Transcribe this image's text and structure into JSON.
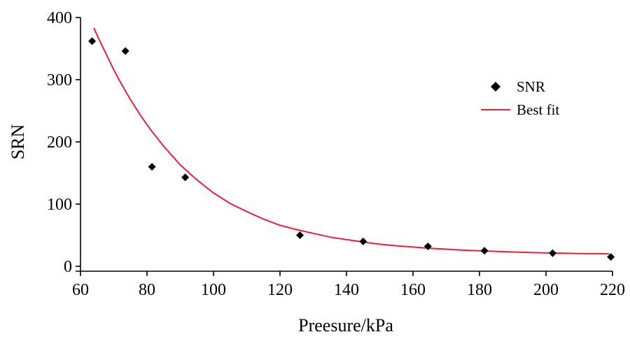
{
  "chart_data": {
    "type": "scatter",
    "title": "",
    "xlabel": "Preesure/kPa",
    "ylabel": "SRN",
    "xlim": [
      60,
      220
    ],
    "ylim": [
      0,
      400
    ],
    "xticks": [
      60,
      80,
      100,
      120,
      140,
      160,
      180,
      200,
      220
    ],
    "yticks": [
      0,
      100,
      200,
      300,
      400
    ],
    "xtick_labels": [
      "60",
      "80",
      "100",
      "120",
      "140",
      "160",
      "180",
      "200",
      "220"
    ],
    "ytick_labels": [
      "0",
      "100",
      "200",
      "300",
      "400"
    ],
    "grid": false,
    "legend_position": "top-right",
    "series": [
      {
        "name": "SNR",
        "kind": "scatter",
        "marker": "diamond",
        "color": "#000000",
        "x": [
          63.5,
          73.5,
          81.5,
          91.5,
          126,
          145,
          164.5,
          181.5,
          202,
          219.5
        ],
        "y": [
          362,
          346,
          160,
          143,
          50,
          40,
          32,
          25,
          21,
          15
        ]
      },
      {
        "name": "Best fit",
        "kind": "line",
        "color": "#e8203a",
        "x": [
          64,
          66,
          68,
          70,
          72,
          75,
          78,
          81,
          85,
          90,
          95,
          100,
          105,
          110,
          115,
          120,
          125,
          130,
          135,
          140,
          145,
          150,
          155,
          160,
          165,
          170,
          175,
          180,
          185,
          190,
          195,
          200,
          205,
          210,
          215,
          219
        ],
        "y": [
          383,
          360,
          338,
          316,
          296,
          268,
          243,
          220,
          193,
          163,
          139,
          118,
          101,
          88,
          76,
          66,
          59,
          53,
          47,
          43,
          39,
          35.5,
          33,
          31,
          29,
          27.5,
          26,
          25,
          24,
          23,
          22.3,
          21.6,
          21.1,
          20.6,
          20.3,
          20
        ]
      }
    ]
  }
}
